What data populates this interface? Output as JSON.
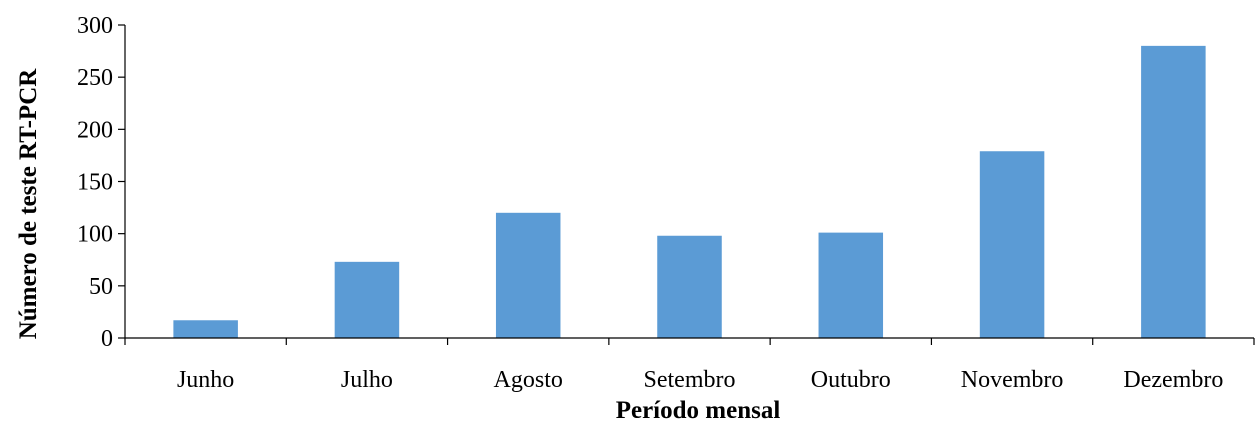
{
  "chart_data": {
    "type": "bar",
    "categories": [
      "Junho",
      "Julho",
      "Agosto",
      "Setembro",
      "Outubro",
      "Novembro",
      "Dezembro"
    ],
    "values": [
      17,
      73,
      120,
      98,
      101,
      179,
      280
    ],
    "title": "",
    "xlabel": "Período mensal",
    "ylabel": "Número de teste RT-PCR",
    "ylim": [
      0,
      300
    ],
    "yticks": [
      0,
      50,
      100,
      150,
      200,
      250,
      300
    ],
    "bar_color": "#5b9bd5",
    "grid": false,
    "legend": "none"
  }
}
